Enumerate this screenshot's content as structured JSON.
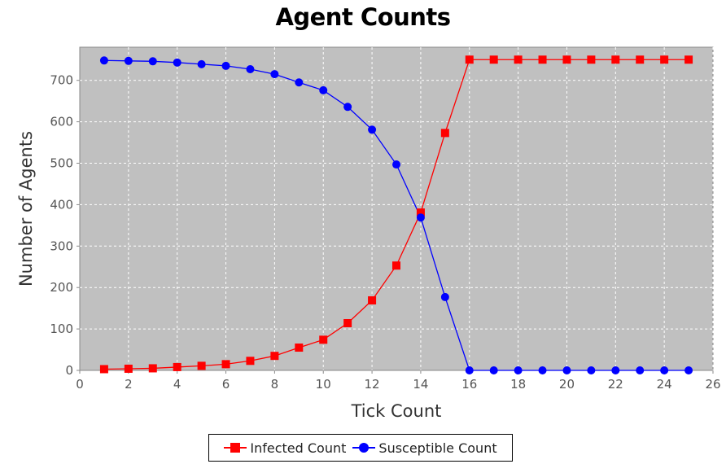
{
  "chart_data": {
    "type": "line",
    "title": "Agent Counts",
    "xlabel": "Tick Count",
    "ylabel": "Number of Agents",
    "xlim": [
      0,
      26
    ],
    "ylim": [
      0,
      780
    ],
    "x_ticks": [
      0,
      2,
      4,
      6,
      8,
      10,
      12,
      14,
      16,
      18,
      20,
      22,
      24,
      26
    ],
    "y_ticks": [
      0,
      100,
      200,
      300,
      400,
      500,
      600,
      700
    ],
    "grid": true,
    "legend_position": "bottom",
    "x": [
      1,
      2,
      3,
      4,
      5,
      6,
      7,
      8,
      9,
      10,
      11,
      12,
      13,
      14,
      15,
      16,
      17,
      18,
      19,
      20,
      21,
      22,
      23,
      24,
      25
    ],
    "series": [
      {
        "name": "Infected Count",
        "color": "#ff0000",
        "marker": "square",
        "values": [
          3,
          4,
          5,
          8,
          11,
          15,
          23,
          35,
          55,
          74,
          114,
          169,
          253,
          381,
          573,
          750,
          750,
          750,
          750,
          750,
          750,
          750,
          750,
          750,
          750
        ]
      },
      {
        "name": "Susceptible Count",
        "color": "#0000ff",
        "marker": "circle",
        "values": [
          748,
          747,
          746,
          743,
          739,
          735,
          727,
          715,
          695,
          676,
          636,
          581,
          497,
          369,
          177,
          0,
          0,
          0,
          0,
          0,
          0,
          0,
          0,
          0,
          0
        ]
      }
    ]
  },
  "colors": {
    "plot_background": "#c0c0c0",
    "grid": "#ffffff"
  }
}
